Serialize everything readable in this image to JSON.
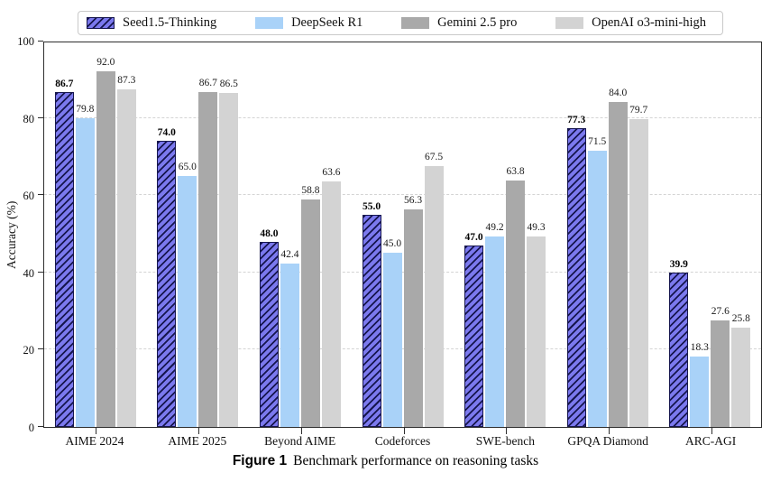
{
  "chart_data": {
    "type": "bar",
    "ylabel": "Accuracy (%)",
    "ylim": [
      0,
      100
    ],
    "yticks": [
      0,
      20,
      40,
      60,
      80,
      100
    ],
    "grid": "horizontal dashed at 20,40,60,80",
    "legend_position": "top",
    "categories": [
      "AIME 2024",
      "AIME 2025",
      "Beyond AIME",
      "Codeforces",
      "SWE-bench",
      "GPQA Diamond",
      "ARC-AGI"
    ],
    "series": [
      {
        "name": "Seed1.5-Thinking",
        "color": "#7b79ee",
        "hatch": "//",
        "hatch_color": "#16164e",
        "bold_labels": true,
        "values": [
          86.7,
          74.0,
          48.0,
          55.0,
          47.0,
          77.3,
          39.9
        ]
      },
      {
        "name": "DeepSeek R1",
        "color": "#a9d2f8",
        "values": [
          79.8,
          65.0,
          42.4,
          45.0,
          49.2,
          71.5,
          18.3
        ]
      },
      {
        "name": "Gemini 2.5 pro",
        "color": "#a9a9a9",
        "values": [
          92.0,
          86.7,
          58.8,
          56.3,
          63.8,
          84.0,
          27.6
        ]
      },
      {
        "name": "OpenAI o3-mini-high",
        "color": "#d3d3d3",
        "values": [
          87.3,
          86.5,
          63.6,
          67.5,
          49.3,
          79.7,
          25.8
        ]
      }
    ]
  },
  "caption": {
    "label": "Figure 1",
    "text": "Benchmark performance on reasoning tasks"
  },
  "colors": {
    "spine": "#2e2e2e",
    "gridline": "#d4d4d4",
    "legend_border": "#c9c9c9",
    "background": "#ffffff"
  }
}
